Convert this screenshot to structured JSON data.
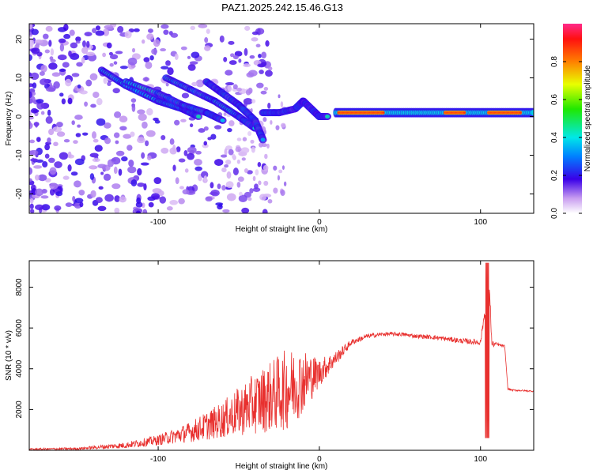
{
  "title": "PAZ1.2025.242.15.46.G13",
  "colors": {
    "snr_line": "#e8302e",
    "axis": "#000000",
    "background": "#ffffff"
  },
  "chart_data": [
    {
      "type": "heatmap",
      "name": "spectrogram",
      "xlabel": "Height of straight line (km)",
      "ylabel": "Frequency (Hz)",
      "xlim": [
        -180,
        133
      ],
      "ylim": [
        -25,
        24
      ],
      "xticks": [
        "-100",
        "0",
        "100"
      ],
      "xtick_values": [
        -100,
        0,
        100
      ],
      "yticks": [
        "20",
        "10",
        "0",
        "-10",
        "-20"
      ],
      "ytick_values": [
        20,
        10,
        0,
        -10,
        -20
      ],
      "colorbar": {
        "label": "Normalized spectral amplitude",
        "ticks": [
          "0.0",
          "0.2",
          "0.4",
          "0.6",
          "0.8"
        ],
        "tick_values": [
          0.0,
          0.2,
          0.4,
          0.6,
          0.8
        ],
        "range": [
          0,
          1
        ]
      },
      "ridges": [
        {
          "x": [
            -135,
            -120,
            -100,
            -85,
            -75
          ],
          "y": [
            12,
            8,
            4,
            2,
            0
          ]
        },
        {
          "x": [
            -120,
            -100,
            -85,
            -70,
            -60
          ],
          "y": [
            9,
            6,
            3,
            1,
            -1
          ]
        },
        {
          "x": [
            -95,
            -80,
            -65,
            -50,
            -40
          ],
          "y": [
            10,
            7,
            4,
            0,
            -3
          ]
        },
        {
          "x": [
            -70,
            -60,
            -50,
            -40,
            -35
          ],
          "y": [
            9,
            6,
            3,
            -1,
            -6
          ]
        },
        {
          "x": [
            -35,
            -25,
            -15,
            -10,
            -5,
            0,
            5
          ],
          "y": [
            1,
            1,
            2,
            4,
            2,
            0,
            0
          ]
        }
      ],
      "band": {
        "x_start": 10,
        "x_end": 133,
        "frequency": 1,
        "peak_segments": [
          [
            12,
            40
          ],
          [
            78,
            90
          ],
          [
            105,
            125
          ]
        ]
      }
    },
    {
      "type": "line",
      "name": "snr",
      "xlabel": "Height of straight line (km)",
      "ylabel": "SNR (10 * v/v)",
      "xlim": [
        -180,
        133
      ],
      "ylim": [
        0,
        9300
      ],
      "xticks": [
        "-100",
        "0",
        "100"
      ],
      "xtick_values": [
        -100,
        0,
        100
      ],
      "yticks": [
        "8000",
        "6000",
        "4000",
        "2000"
      ],
      "ytick_values": [
        8000,
        6000,
        4000,
        2000
      ],
      "series": [
        {
          "name": "SNR",
          "x": [
            -180,
            -150,
            -120,
            -100,
            -80,
            -60,
            -40,
            -20,
            -10,
            0,
            10,
            20,
            30,
            40,
            50,
            60,
            70,
            80,
            90,
            100,
            103,
            105,
            107,
            110,
            115,
            117,
            120,
            133
          ],
          "y": [
            50,
            80,
            250,
            500,
            900,
            1500,
            2300,
            3000,
            3400,
            3800,
            4500,
            5300,
            5600,
            5700,
            5700,
            5600,
            5550,
            5450,
            5350,
            5300,
            7000,
            9200,
            5200,
            5200,
            5100,
            3000,
            2950,
            2900
          ],
          "noise": [
            50,
            60,
            150,
            250,
            500,
            900,
            1500,
            2000,
            1600,
            700,
            350,
            150,
            120,
            100,
            100,
            100,
            110,
            120,
            130,
            150,
            300,
            500,
            200,
            80,
            60,
            50,
            40,
            40
          ]
        }
      ]
    }
  ]
}
